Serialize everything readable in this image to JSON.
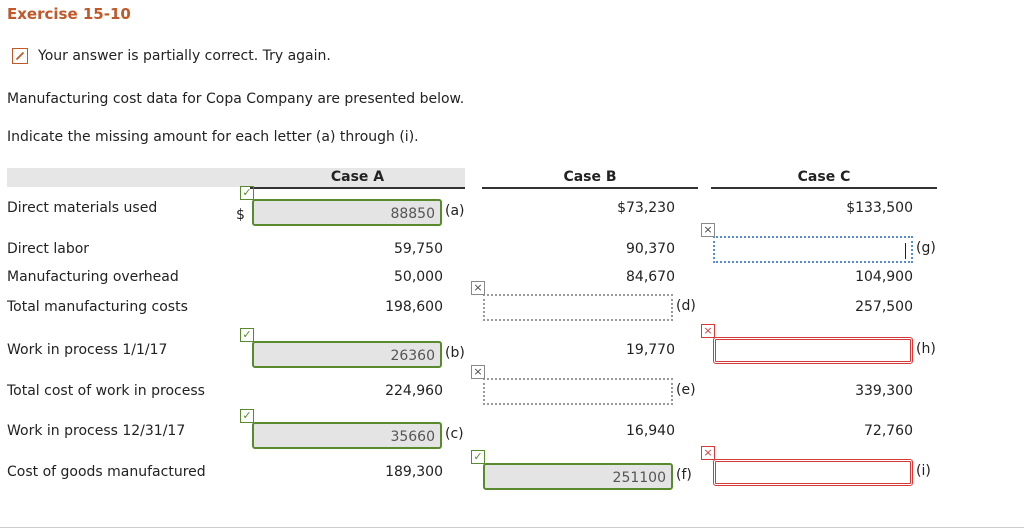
{
  "header": {
    "title": "Exercise 15-10"
  },
  "status": "Your answer is partially correct.  Try again.",
  "instructions": [
    "Manufacturing cost data for Copa Company are presented below.",
    "Indicate the missing amount for each letter (a) through (i)."
  ],
  "table": {
    "columns": [
      "Case A",
      "Case B",
      "Case C"
    ],
    "rows": [
      {
        "label": "Direct materials used",
        "cells": [
          {
            "kind": "input",
            "currency": "$",
            "input": "88850",
            "letter": "(a)",
            "state": "correct"
          },
          {
            "kind": "text",
            "text": "$73,230"
          },
          {
            "kind": "text",
            "text": "$133,500"
          }
        ]
      },
      {
        "label": "Direct labor",
        "cells": [
          {
            "kind": "text",
            "text": "59,750"
          },
          {
            "kind": "text",
            "text": "90,370"
          },
          {
            "kind": "input",
            "letter": "(g)",
            "state": "focused"
          }
        ]
      },
      {
        "label": "Manufacturing overhead",
        "cells": [
          {
            "kind": "text",
            "text": "50,000"
          },
          {
            "kind": "text",
            "text": "84,670"
          },
          {
            "kind": "text",
            "text": "104,900"
          }
        ]
      },
      {
        "label": "Total manufacturing costs",
        "cells": [
          {
            "kind": "text",
            "text": "198,600"
          },
          {
            "kind": "input",
            "letter": "(d)",
            "state": "unanswered"
          },
          {
            "kind": "text",
            "text": "257,500"
          }
        ]
      },
      {
        "label": "Work in process 1/1/17",
        "cells": [
          {
            "kind": "input",
            "input": "26360",
            "letter": "(b)",
            "state": "correct"
          },
          {
            "kind": "text",
            "text": "19,770"
          },
          {
            "kind": "input",
            "letter": "(h)",
            "state": "incorrect"
          }
        ]
      },
      {
        "label": "Total cost of work in process",
        "cells": [
          {
            "kind": "text",
            "text": "224,960"
          },
          {
            "kind": "input",
            "letter": "(e)",
            "state": "unanswered"
          },
          {
            "kind": "text",
            "text": "339,300"
          }
        ]
      },
      {
        "label": "Work in process 12/31/17",
        "cells": [
          {
            "kind": "input",
            "input": "35660",
            "letter": "(c)",
            "state": "correct"
          },
          {
            "kind": "text",
            "text": "16,940"
          },
          {
            "kind": "text",
            "text": "72,760"
          }
        ]
      },
      {
        "label": "Cost of goods manufactured",
        "cells": [
          {
            "kind": "text",
            "text": "189,300"
          },
          {
            "kind": "input",
            "input": "251100",
            "letter": "(f)",
            "state": "correct"
          },
          {
            "kind": "input",
            "letter": "(i)",
            "state": "incorrect"
          }
        ]
      }
    ]
  }
}
